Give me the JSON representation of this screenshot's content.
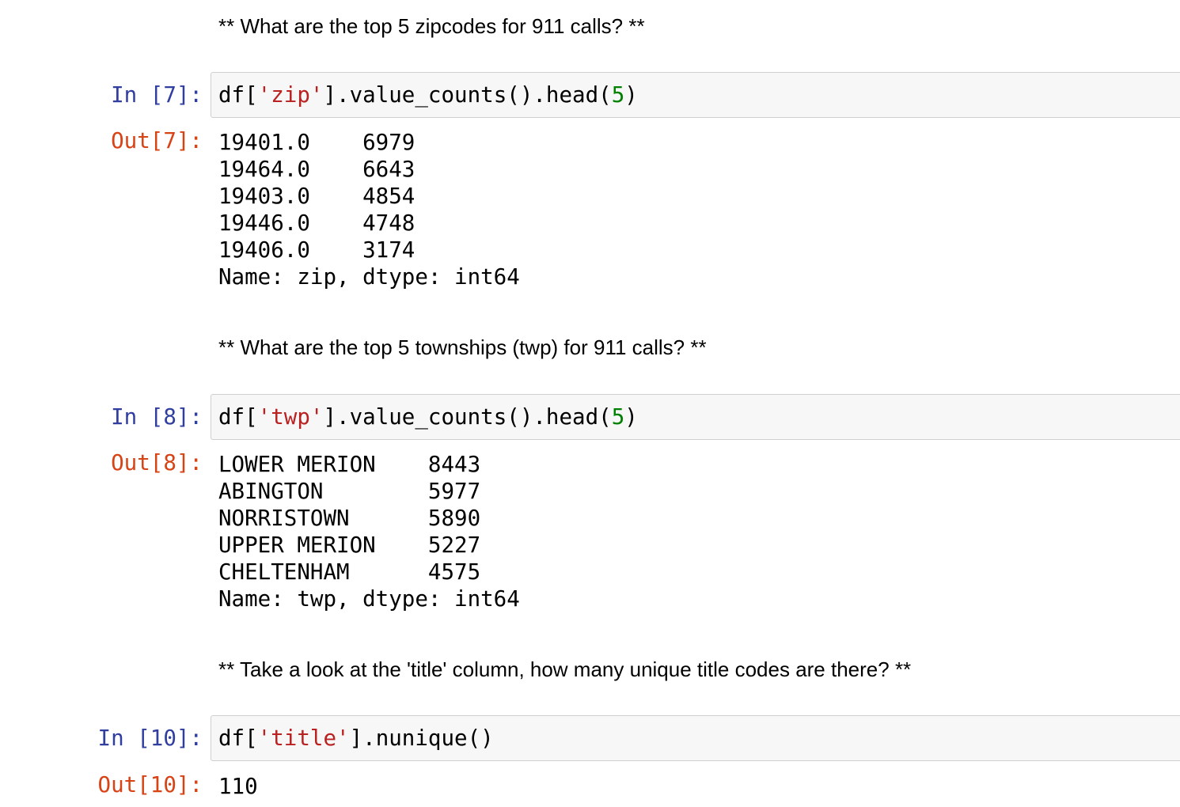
{
  "cells": [
    {
      "markdown": "** What are the top 5 zipcodes for 911 calls? **"
    },
    {
      "in_prompt": "In [7]:",
      "code": {
        "pre": "df[",
        "string": "'zip'",
        "mid": "].value_counts().head(",
        "number": "5",
        "post": ")"
      },
      "out_prompt": "Out[7]:",
      "output": [
        "19401.0    6979",
        "19464.0    6643",
        "19403.0    4854",
        "19446.0    4748",
        "19406.0    3174",
        "Name: zip, dtype: int64"
      ]
    },
    {
      "markdown": "** What are the top 5 townships (twp) for 911 calls? **"
    },
    {
      "in_prompt": "In [8]:",
      "code": {
        "pre": "df[",
        "string": "'twp'",
        "mid": "].value_counts().head(",
        "number": "5",
        "post": ")"
      },
      "out_prompt": "Out[8]:",
      "output": [
        "LOWER MERION    8443",
        "ABINGTON        5977",
        "NORRISTOWN      5890",
        "UPPER MERION    5227",
        "CHELTENHAM      4575",
        "Name: twp, dtype: int64"
      ]
    },
    {
      "markdown": "** Take a look at the 'title' column, how many unique title codes are there? **"
    },
    {
      "in_prompt": "In [10]:",
      "code": {
        "pre": "df[",
        "string": "'title'",
        "mid": "].nunique()",
        "number": "",
        "post": ""
      },
      "out_prompt": "Out[10]:",
      "output": [
        "110"
      ]
    }
  ],
  "colors": {
    "in_prompt": "#303f9f",
    "out_prompt": "#d84315",
    "string": "#ba2121",
    "number": "#008000",
    "input_bg": "#f7f7f7"
  }
}
